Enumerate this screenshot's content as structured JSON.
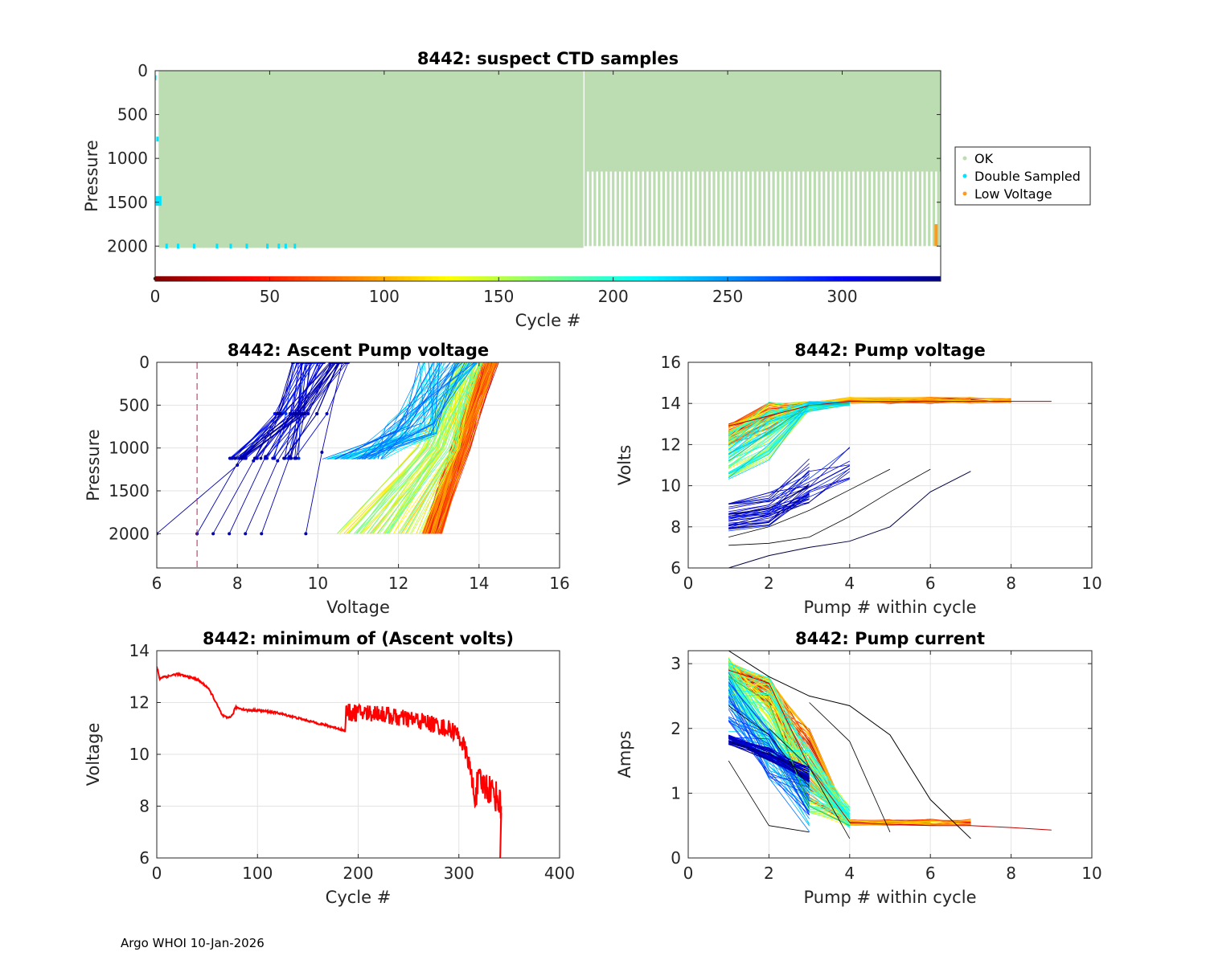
{
  "footer": "Argo WHOI 10-Jan-2026",
  "colors": {
    "ok": "#bcdcb1",
    "double": "#00e5ff",
    "lowv": "#ff9a1a",
    "grid": "#e3e3e3",
    "axis": "#262626"
  },
  "chart_data": [
    {
      "id": "ctd",
      "type": "scatter",
      "title": "8442: suspect CTD samples",
      "xlabel": "Cycle #",
      "ylabel": "Pressure",
      "xlim": [
        0,
        343
      ],
      "ylim": [
        0,
        2400
      ],
      "y_reversed": true,
      "xticks": [
        0,
        50,
        100,
        150,
        200,
        250,
        300
      ],
      "yticks": [
        0,
        500,
        1000,
        1500,
        2000
      ],
      "legend": [
        "OK",
        "Double Sampled",
        "Low Voltage"
      ],
      "legend_position": "outside-right",
      "colorbar_axis": "cycle color key along bottom (jet, 0 to 343)",
      "profile_depth_segments": [
        {
          "cycles": [
            0,
            187
          ],
          "max_pressure": 2000
        },
        {
          "cycles": [
            188,
            343
          ],
          "max_pressure": 1150
        }
      ],
      "double_sampled_cycles": [
        0,
        1,
        2,
        5,
        10,
        17,
        27,
        33,
        40,
        49,
        54,
        57,
        61
      ],
      "low_voltage_cycle": 341,
      "low_voltage_pressure_range": [
        1750,
        2000
      ]
    },
    {
      "id": "ascent",
      "type": "line",
      "title": "8442: Ascent Pump voltage",
      "xlabel": "Voltage",
      "ylabel": "Pressure",
      "xlim": [
        6,
        16
      ],
      "ylim": [
        0,
        2400
      ],
      "y_reversed": true,
      "xticks": [
        6,
        8,
        10,
        12,
        14,
        16
      ],
      "yticks": [
        0,
        500,
        1000,
        1500,
        2000
      ],
      "threshold_line": {
        "x": 7,
        "style": "dashed"
      },
      "series_groups": [
        {
          "name": "early cycles (red)",
          "deep_voltage_range": [
            12.6,
            13.1
          ],
          "surface_voltage_range": [
            14.1,
            14.5
          ],
          "deep_pressure": 2000
        },
        {
          "name": "mid cycles (green/cyan)",
          "deep_voltage_range": [
            10.4,
            12.5
          ],
          "surface_voltage_range": [
            13.4,
            14.1
          ],
          "deep_pressure": 2000
        },
        {
          "name": "shallow-profile cycles (blue)",
          "deep_voltage_range": [
            10.1,
            11.5
          ],
          "surface_voltage_range": [
            12.5,
            14.0
          ],
          "deep_pressure": 1130
        },
        {
          "name": "late cycles (dark blue)",
          "deep_voltage_range": [
            6.0,
            9.7
          ],
          "surface_voltage_range": [
            9.3,
            10.8
          ],
          "deep_pressure": 2000
        }
      ]
    },
    {
      "id": "pumpv",
      "type": "line",
      "title": "8442: Pump voltage",
      "xlabel": "Pump # within cycle",
      "ylabel": "Volts",
      "xlim": [
        0,
        10
      ],
      "ylim": [
        6,
        16
      ],
      "xticks": [
        0,
        2,
        4,
        6,
        8,
        10
      ],
      "yticks": [
        6,
        8,
        10,
        12,
        14,
        16
      ],
      "example_series": [
        {
          "name": "early",
          "x": [
            1,
            2,
            3,
            4,
            5,
            6,
            7,
            8,
            9
          ],
          "y": [
            12.9,
            13.4,
            13.9,
            14.1,
            14.1,
            14.1,
            14.1,
            14.1,
            14.1
          ]
        },
        {
          "name": "mid",
          "x": [
            1,
            2,
            3,
            4
          ],
          "y": [
            11.2,
            12.6,
            13.9,
            14.0
          ]
        },
        {
          "name": "late",
          "x": [
            1,
            2,
            3
          ],
          "y": [
            8.6,
            8.9,
            10.0
          ]
        },
        {
          "name": "lowest",
          "x": [
            1,
            2,
            3,
            4,
            5,
            6,
            7
          ],
          "y": [
            6.0,
            6.6,
            7.0,
            7.3,
            8.0,
            9.7,
            10.7
          ]
        }
      ]
    },
    {
      "id": "minv",
      "type": "line",
      "title": "8442: minimum of (Ascent volts)",
      "xlabel": "Cycle #",
      "ylabel": "Voltage",
      "xlim": [
        0,
        400
      ],
      "ylim": [
        6,
        14
      ],
      "xticks": [
        0,
        100,
        200,
        300,
        400
      ],
      "yticks": [
        6,
        8,
        10,
        12,
        14
      ],
      "x": [
        0,
        3,
        6,
        10,
        20,
        30,
        40,
        50,
        55,
        60,
        65,
        70,
        75,
        78,
        80,
        90,
        100,
        120,
        140,
        160,
        170,
        180,
        187,
        188,
        200,
        220,
        240,
        260,
        280,
        295,
        300,
        305,
        310,
        315,
        320,
        330,
        335,
        340,
        342
      ],
      "y": [
        13.4,
        12.9,
        13.0,
        13.0,
        13.1,
        13.0,
        12.9,
        12.6,
        12.3,
        11.9,
        11.5,
        11.4,
        11.5,
        11.8,
        11.8,
        11.7,
        11.7,
        11.6,
        11.4,
        11.2,
        11.1,
        11.0,
        10.9,
        11.6,
        11.6,
        11.6,
        11.4,
        11.3,
        11.1,
        10.9,
        10.7,
        10.3,
        9.7,
        8.4,
        8.9,
        8.7,
        8.5,
        8.2,
        7.9
      ],
      "noise_amplitude_after_cycle_188": 0.35
    },
    {
      "id": "pumpc",
      "type": "line",
      "title": "8442: Pump current",
      "xlabel": "Pump # within cycle",
      "ylabel": "Amps",
      "xlim": [
        0,
        10
      ],
      "ylim": [
        0,
        3.2
      ],
      "xticks": [
        0,
        2,
        4,
        6,
        8,
        10
      ],
      "yticks": [
        0,
        1,
        2,
        3
      ],
      "example_series": [
        {
          "name": "early",
          "x": [
            1,
            2,
            3,
            4,
            5,
            6,
            7,
            8,
            9
          ],
          "y": [
            2.9,
            2.7,
            1.4,
            0.55,
            0.52,
            0.5,
            0.5,
            0.47,
            0.43
          ]
        },
        {
          "name": "mid",
          "x": [
            1,
            2,
            3,
            4
          ],
          "y": [
            2.8,
            2.4,
            0.8,
            0.5
          ]
        },
        {
          "name": "late",
          "x": [
            1,
            2,
            3
          ],
          "y": [
            1.8,
            1.6,
            1.3
          ]
        },
        {
          "name": "outlier",
          "x": [
            1,
            2,
            3,
            4,
            5,
            6,
            7
          ],
          "y": [
            3.2,
            2.8,
            2.5,
            2.35,
            1.9,
            0.9,
            0.3
          ]
        }
      ]
    }
  ]
}
